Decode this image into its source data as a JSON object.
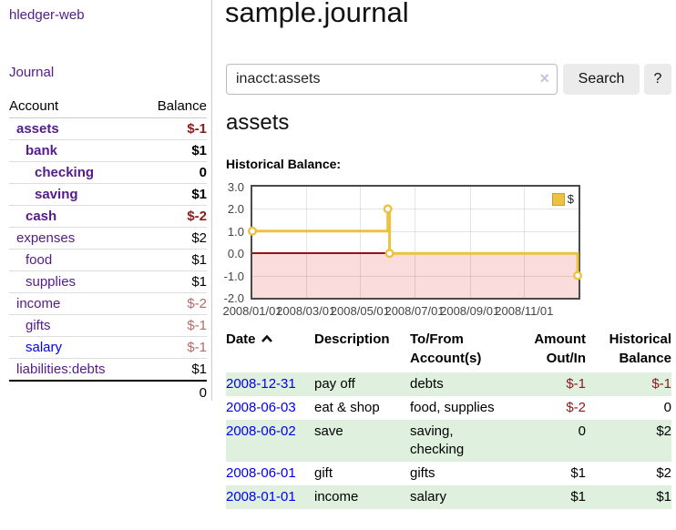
{
  "app": {
    "brand": "hledger-web",
    "nav_journal": "Journal"
  },
  "sidebar": {
    "headers": {
      "account": "Account",
      "balance": "Balance"
    },
    "accounts": [
      {
        "name": "assets",
        "balance": "$-1",
        "indent": 1,
        "bold": true,
        "name_class": "visited",
        "balance_class": "neg-strong"
      },
      {
        "name": "bank",
        "balance": "$1",
        "indent": 2,
        "bold": true,
        "name_class": "visited",
        "balance_class": ""
      },
      {
        "name": "checking",
        "balance": "0",
        "indent": 3,
        "bold": true,
        "name_class": "visited",
        "balance_class": ""
      },
      {
        "name": "saving",
        "balance": "$1",
        "indent": 3,
        "bold": true,
        "name_class": "visited",
        "balance_class": ""
      },
      {
        "name": "cash",
        "balance": "$-2",
        "indent": 2,
        "bold": true,
        "name_class": "visited",
        "balance_class": "neg-strong"
      },
      {
        "name": "expenses",
        "balance": "$2",
        "indent": 1,
        "bold": false,
        "name_class": "visited",
        "balance_class": ""
      },
      {
        "name": "food",
        "balance": "$1",
        "indent": 2,
        "bold": false,
        "name_class": "visited",
        "balance_class": ""
      },
      {
        "name": "supplies",
        "balance": "$1",
        "indent": 2,
        "bold": false,
        "name_class": "visited",
        "balance_class": ""
      },
      {
        "name": "income",
        "balance": "$-2",
        "indent": 1,
        "bold": false,
        "name_class": "visited",
        "balance_class": "neg-muted"
      },
      {
        "name": "gifts",
        "balance": "$-1",
        "indent": 2,
        "bold": false,
        "name_class": "visited",
        "balance_class": "neg-muted"
      },
      {
        "name": "salary",
        "balance": "$-1",
        "indent": 2,
        "bold": false,
        "name_class": "unvisited",
        "balance_class": "neg-muted"
      },
      {
        "name": "liabilities:debts",
        "balance": "$1",
        "indent": 1,
        "bold": false,
        "name_class": "visited",
        "balance_class": ""
      }
    ],
    "total": "0"
  },
  "header": {
    "title": "sample.journal"
  },
  "search": {
    "value": "inacct:assets",
    "clear_icon": "×",
    "button_label": "Search",
    "help_label": "?"
  },
  "account_page": {
    "heading": "assets",
    "chart_label": "Historical Balance:"
  },
  "chart_data": {
    "type": "line",
    "step": true,
    "title": "Historical Balance",
    "series": [
      {
        "name": "$",
        "color": "#edc240",
        "points": [
          [
            "2008-01-01",
            1
          ],
          [
            "2008-06-01",
            2
          ],
          [
            "2008-06-03",
            0
          ],
          [
            "2008-12-31",
            -1
          ]
        ]
      }
    ],
    "xrange": [
      "2008-01-01",
      "2009-01-01"
    ],
    "ylim": [
      -2,
      3
    ],
    "yticks": [
      3.0,
      2.0,
      1.0,
      0.0,
      -1.0,
      -2.0
    ],
    "xticks": [
      "2008/01/01",
      "2008/03/01",
      "2008/05/01",
      "2008/07/01",
      "2008/09/01",
      "2008/11/01"
    ],
    "legend": {
      "label": "$",
      "position": "top-right"
    },
    "grid": true,
    "negative_region_color": "#fbdcdc",
    "zero_line_color": "#991111"
  },
  "transactions": {
    "headers": {
      "date": "Date",
      "description": "Description",
      "accounts": "To/From\nAccount(s)",
      "amount": "Amount\nOut/In",
      "balance": "Historical\nBalance"
    },
    "rows": [
      {
        "date": "2008-12-31",
        "description": "pay off",
        "accounts": "debts",
        "amount": "$-1",
        "balance": "$-1"
      },
      {
        "date": "2008-06-03",
        "description": "eat & shop",
        "accounts": "food, supplies",
        "amount": "$-2",
        "balance": "0"
      },
      {
        "date": "2008-06-02",
        "description": "save",
        "accounts": "saving,\nchecking",
        "amount": "0",
        "balance": "$2"
      },
      {
        "date": "2008-06-01",
        "description": "gift",
        "accounts": "gifts",
        "amount": "$1",
        "balance": "$2"
      },
      {
        "date": "2008-01-01",
        "description": "income",
        "accounts": "salary",
        "amount": "$1",
        "balance": "$1"
      }
    ]
  }
}
